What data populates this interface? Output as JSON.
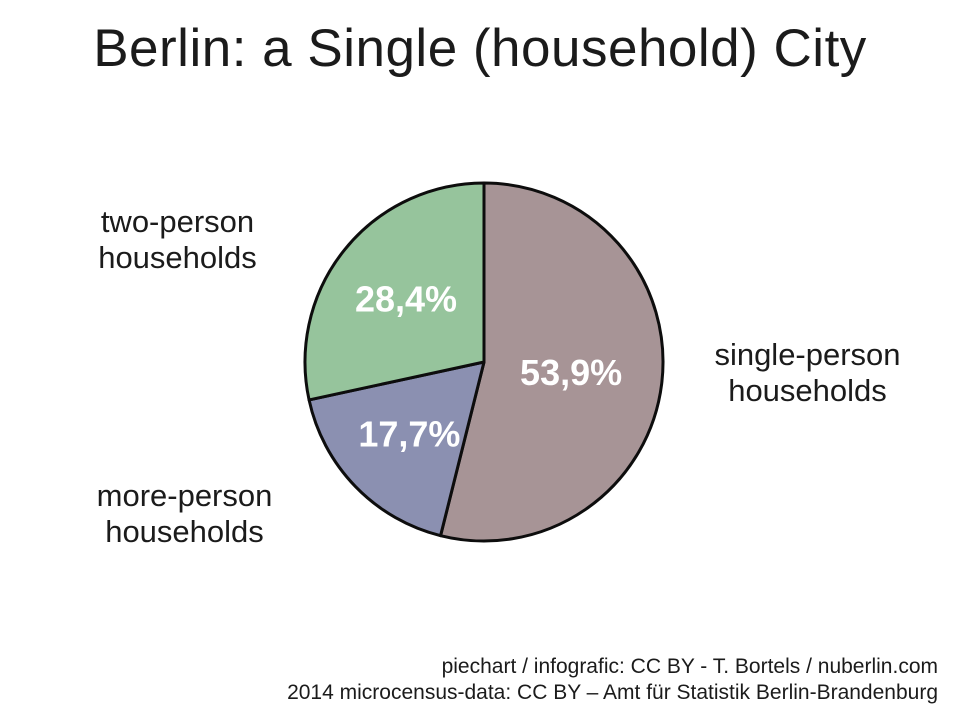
{
  "title": "Berlin: a Single (household) City",
  "chart_data": {
    "type": "pie",
    "title": "Berlin: a Single (household) City",
    "start_angle_deg": 0,
    "direction": "clockwise",
    "slices": [
      {
        "label": "single-person households",
        "value": 53.9,
        "display": "53,9%",
        "color": "#a79496"
      },
      {
        "label": "more-person households",
        "value": 17.7,
        "display": "17,7%",
        "color": "#8b90b1"
      },
      {
        "label": "two-person households",
        "value": 28.4,
        "display": "28,4%",
        "color": "#96c49c"
      }
    ],
    "stroke_color": "#0d0d0d",
    "value_label_color": "#ffffff",
    "legend_position": "around-chart",
    "grid": false
  },
  "labels": {
    "two_person": {
      "line1": "two-person",
      "line2": "households"
    },
    "more_person": {
      "line1": "more-person",
      "line2": "households"
    },
    "single_person": {
      "line1": "single-person",
      "line2": "households"
    }
  },
  "footer": {
    "line1": "piechart / infografic: CC BY - T. Bortels / nuberlin.com",
    "line2": "2014 microcensus-data: CC BY – Amt für Statistik Berlin-Brandenburg"
  }
}
